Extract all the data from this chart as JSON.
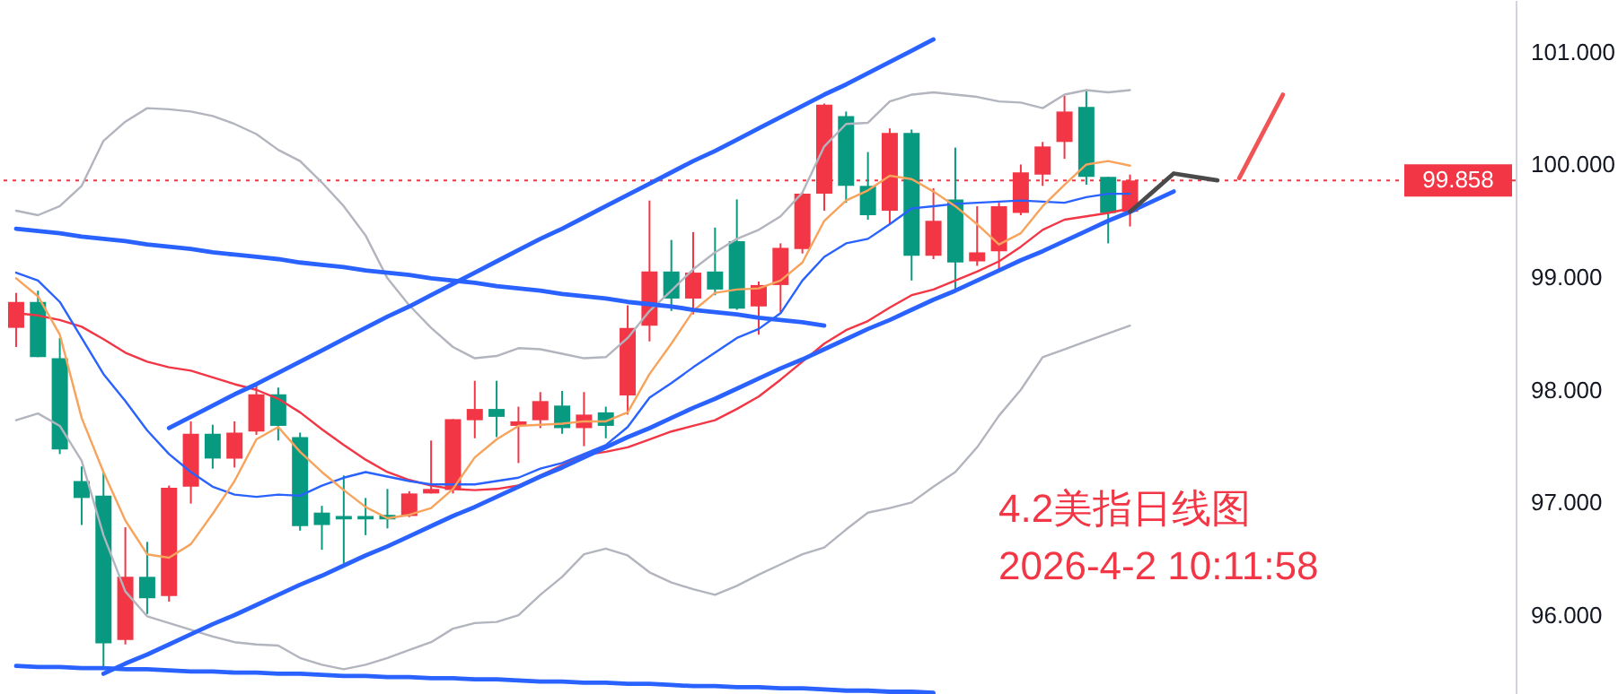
{
  "chart_data": {
    "type": "candlestick",
    "categories": [
      null,
      null,
      null,
      null,
      null,
      null,
      null,
      null,
      null,
      null,
      null,
      null,
      null,
      null,
      null,
      null,
      null,
      null,
      null,
      null,
      null,
      null,
      null,
      null,
      null,
      null,
      null,
      null,
      null,
      null,
      null,
      null,
      null,
      null,
      null,
      null,
      null,
      null,
      null,
      null,
      null,
      null,
      null,
      null,
      null,
      null,
      null,
      null,
      null,
      null,
      null,
      null,
      null,
      null,
      null,
      null,
      null,
      null,
      null,
      null,
      null,
      null,
      null,
      null,
      null,
      null,
      null,
      null,
      null
    ],
    "ohlc": [
      [
        98.55,
        98.86,
        98.38,
        98.78
      ],
      [
        98.78,
        98.88,
        98.29,
        98.29
      ],
      [
        98.28,
        98.46,
        97.43,
        97.47
      ],
      [
        97.19,
        97.32,
        96.8,
        97.04
      ],
      [
        97.06,
        97.27,
        95.52,
        95.75
      ],
      [
        95.78,
        96.78,
        95.74,
        96.34
      ],
      [
        96.34,
        96.65,
        96.01,
        96.15
      ],
      [
        96.17,
        97.15,
        96.12,
        97.13
      ],
      [
        97.14,
        97.72,
        96.99,
        97.61
      ],
      [
        97.61,
        97.69,
        97.3,
        97.39
      ],
      [
        97.39,
        97.72,
        97.31,
        97.62
      ],
      [
        97.63,
        98.04,
        97.6,
        97.96
      ],
      [
        97.96,
        98.02,
        97.55,
        97.68
      ],
      [
        97.58,
        97.62,
        96.75,
        96.79
      ],
      [
        96.91,
        96.97,
        96.58,
        96.8
      ],
      [
        96.88,
        97.24,
        96.46,
        96.85
      ],
      [
        96.88,
        97.04,
        96.71,
        96.85
      ],
      [
        96.89,
        97.12,
        96.77,
        96.85
      ],
      [
        96.88,
        97.1,
        96.87,
        97.08
      ],
      [
        97.08,
        97.55,
        97.08,
        97.12
      ],
      [
        97.11,
        97.74,
        97.08,
        97.74
      ],
      [
        97.73,
        98.08,
        97.57,
        97.83
      ],
      [
        97.83,
        98.08,
        97.58,
        97.76
      ],
      [
        97.68,
        97.85,
        97.35,
        97.72
      ],
      [
        97.73,
        97.98,
        97.66,
        97.9
      ],
      [
        97.86,
        97.99,
        97.61,
        97.66
      ],
      [
        97.66,
        97.98,
        97.5,
        97.78
      ],
      [
        97.8,
        97.85,
        97.57,
        97.68
      ],
      [
        97.95,
        98.75,
        97.78,
        98.55
      ],
      [
        98.57,
        99.68,
        98.43,
        99.05
      ],
      [
        99.05,
        99.33,
        98.7,
        98.81
      ],
      [
        98.81,
        99.4,
        98.67,
        99.04
      ],
      [
        99.05,
        99.44,
        98.84,
        98.89
      ],
      [
        99.32,
        99.69,
        98.71,
        98.72
      ],
      [
        98.74,
        98.96,
        98.49,
        98.93
      ],
      [
        98.93,
        99.3,
        98.69,
        99.26
      ],
      [
        99.25,
        99.75,
        99.21,
        99.74
      ],
      [
        99.74,
        100.54,
        99.59,
        100.53
      ],
      [
        100.43,
        100.47,
        99.66,
        99.81
      ],
      [
        99.81,
        100.11,
        99.51,
        99.55
      ],
      [
        99.59,
        100.32,
        99.47,
        100.28
      ],
      [
        100.28,
        100.31,
        98.97,
        99.19
      ],
      [
        99.19,
        99.79,
        99.16,
        99.5
      ],
      [
        99.69,
        100.15,
        98.88,
        99.13
      ],
      [
        99.14,
        99.63,
        99.1,
        99.22
      ],
      [
        99.23,
        99.66,
        99.06,
        99.63
      ],
      [
        99.57,
        100.0,
        99.55,
        99.93
      ],
      [
        99.91,
        100.2,
        99.81,
        100.16
      ],
      [
        100.2,
        100.61,
        100.05,
        100.47
      ],
      [
        100.51,
        100.66,
        99.82,
        99.89
      ],
      [
        99.89,
        99.89,
        99.3,
        99.57
      ],
      [
        99.58,
        99.91,
        99.45,
        99.858
      ],
      null,
      null,
      null,
      null,
      null,
      null,
      null,
      null,
      null,
      null,
      null,
      null,
      null,
      null,
      null,
      null,
      null
    ],
    "colors": [
      "#f23645",
      "#089981",
      "#089981",
      "#089981",
      "#089981",
      "#f23645",
      "#089981",
      "#f23645",
      "#f23645",
      "#089981",
      "#f23645",
      "#f23645",
      "#089981",
      "#089981",
      "#089981",
      "#089981",
      "#089981",
      "#089981",
      "#f23645",
      "#f23645",
      "#f23645",
      "#f23645",
      "#089981",
      "#f23645",
      "#f23645",
      "#089981",
      "#f23645",
      "#089981",
      "#f23645",
      "#f23645",
      "#089981",
      "#f23645",
      "#089981",
      "#089981",
      "#f23645",
      "#f23645",
      "#f23645",
      "#f23645",
      "#089981",
      "#089981",
      "#f23645",
      "#089981",
      "#f23645",
      "#089981",
      "#f23645",
      "#f23645",
      "#f23645",
      "#f23645",
      "#f23645",
      "#089981",
      "#089981",
      "#f23645",
      null,
      null,
      null,
      null,
      null,
      null,
      null,
      null,
      null,
      null,
      null,
      null,
      null,
      null,
      null,
      null,
      null
    ],
    "series": [
      {
        "type": "line",
        "color": "#b2b5be",
        "values": [
          99.59,
          99.55,
          99.63,
          99.81,
          100.21,
          100.38,
          100.5,
          100.49,
          100.47,
          100.43,
          100.36,
          100.27,
          100.13,
          100.03,
          99.84,
          99.63,
          99.37,
          98.99,
          98.75,
          98.55,
          98.38,
          98.28,
          98.3,
          98.37,
          98.36,
          98.32,
          98.28,
          98.29,
          98.46,
          98.7,
          98.88,
          99.07,
          99.22,
          99.34,
          99.42,
          99.54,
          99.75,
          100.16,
          100.36,
          100.37,
          100.56,
          100.62,
          100.64,
          100.62,
          100.6,
          100.56,
          100.55,
          100.5,
          100.62,
          100.66,
          100.64,
          100.66,
          null,
          null,
          null,
          null,
          null,
          null,
          null,
          null,
          null,
          null,
          null,
          null,
          null,
          null,
          null,
          null,
          null
        ]
      },
      {
        "type": "line",
        "color": "#b2b5be",
        "values": [
          97.73,
          97.79,
          97.68,
          97.37,
          96.71,
          96.21,
          95.99,
          95.93,
          95.87,
          95.81,
          95.76,
          95.74,
          95.73,
          95.62,
          95.56,
          95.52,
          95.56,
          95.62,
          95.69,
          95.76,
          95.88,
          95.93,
          95.94,
          96.0,
          96.18,
          96.34,
          96.54,
          96.59,
          96.53,
          96.38,
          96.29,
          96.23,
          96.18,
          96.26,
          96.36,
          96.45,
          96.54,
          96.6,
          96.76,
          96.91,
          96.95,
          97.0,
          97.14,
          97.27,
          97.49,
          97.77,
          98.0,
          98.29,
          98.36,
          98.43,
          98.5,
          98.57,
          null,
          null,
          null,
          null,
          null,
          null,
          null,
          null,
          null,
          null,
          null,
          null,
          null,
          null,
          null,
          null,
          null
        ]
      },
      {
        "type": "line",
        "color": "#f23645",
        "values": [
          98.68,
          98.66,
          98.62,
          98.56,
          98.45,
          98.33,
          98.25,
          98.2,
          98.17,
          98.11,
          98.05,
          98.0,
          97.92,
          97.8,
          97.65,
          97.51,
          97.38,
          97.27,
          97.2,
          97.15,
          97.12,
          97.11,
          97.12,
          97.15,
          97.24,
          97.33,
          97.42,
          97.45,
          97.49,
          97.56,
          97.63,
          97.68,
          97.73,
          97.83,
          97.94,
          98.09,
          98.25,
          98.41,
          98.53,
          98.61,
          98.73,
          98.84,
          98.89,
          98.97,
          99.05,
          99.14,
          99.27,
          99.42,
          99.51,
          99.54,
          99.57,
          99.61,
          null,
          null,
          null,
          null,
          null,
          null,
          null,
          null,
          null,
          null,
          null,
          null,
          null,
          null,
          null,
          null,
          null
        ]
      },
      {
        "type": "line",
        "color": "#2962ff",
        "values": [
          99.04,
          98.97,
          98.78,
          98.46,
          98.14,
          97.9,
          97.64,
          97.43,
          97.27,
          97.14,
          97.07,
          97.05,
          97.07,
          97.06,
          97.15,
          97.22,
          97.27,
          97.23,
          97.19,
          97.16,
          97.16,
          97.16,
          97.19,
          97.22,
          97.3,
          97.35,
          97.43,
          97.51,
          97.67,
          97.93,
          98.06,
          98.2,
          98.33,
          98.46,
          98.54,
          98.68,
          98.97,
          99.18,
          99.3,
          99.34,
          99.47,
          99.61,
          99.63,
          99.65,
          99.66,
          99.67,
          99.68,
          99.67,
          99.66,
          99.71,
          99.74,
          99.74,
          null,
          null,
          null,
          null,
          null,
          null,
          null,
          null,
          null,
          null,
          null,
          null,
          null,
          null,
          null,
          null,
          null
        ]
      },
      {
        "type": "line",
        "color": "#f7a35c",
        "values": [
          98.99,
          98.83,
          98.49,
          97.75,
          97.27,
          96.84,
          96.54,
          96.51,
          96.63,
          96.9,
          97.19,
          97.56,
          97.67,
          97.45,
          97.27,
          97.11,
          96.96,
          96.86,
          96.89,
          96.95,
          97.12,
          97.4,
          97.56,
          97.68,
          97.69,
          97.7,
          97.72,
          97.72,
          97.8,
          98.14,
          98.41,
          98.7,
          98.86,
          98.89,
          98.9,
          98.97,
          99.13,
          99.5,
          99.68,
          99.77,
          99.9,
          99.87,
          99.76,
          99.63,
          99.47,
          99.29,
          99.39,
          99.63,
          99.82,
          100.0,
          100.03,
          99.99,
          null,
          null,
          null,
          null,
          null,
          null,
          null,
          null,
          null,
          null,
          null,
          null,
          null,
          null,
          null,
          null,
          null
        ]
      },
      {
        "type": "line",
        "color": "#2962ff",
        "values": [
          99.43,
          99.41,
          99.39,
          99.36,
          99.34,
          99.32,
          99.29,
          99.27,
          99.25,
          99.22,
          99.2,
          99.18,
          99.16,
          99.13,
          99.11,
          99.09,
          99.06,
          99.04,
          99.02,
          98.99,
          98.97,
          98.95,
          98.92,
          98.9,
          98.88,
          98.85,
          98.83,
          98.81,
          98.78,
          98.76,
          98.74,
          98.71,
          98.69,
          98.67,
          98.64,
          98.62,
          98.6,
          98.57,
          null,
          null,
          null,
          null,
          null,
          null,
          null,
          null,
          null,
          null,
          null,
          null,
          null,
          null,
          null,
          null,
          null,
          null,
          null,
          null,
          null,
          null,
          null,
          null,
          null,
          null,
          null,
          null,
          null,
          null,
          null
        ]
      },
      {
        "type": "line",
        "color": "#2962ff",
        "values": [
          null,
          null,
          null,
          null,
          null,
          null,
          null,
          97.66,
          97.76,
          97.86,
          97.96,
          98.05,
          98.15,
          98.25,
          98.35,
          98.45,
          98.55,
          98.65,
          98.74,
          98.84,
          98.94,
          99.04,
          99.14,
          99.24,
          99.34,
          99.43,
          99.53,
          99.63,
          99.73,
          99.83,
          99.93,
          100.03,
          100.12,
          100.22,
          100.32,
          100.42,
          100.52,
          100.62,
          100.71,
          100.81,
          100.91,
          101.01,
          101.11,
          null,
          null,
          null,
          null,
          null,
          null,
          null,
          null,
          null,
          null,
          null,
          null,
          null,
          null,
          null,
          null,
          null,
          null,
          null,
          null,
          null,
          null,
          null,
          null,
          null,
          null
        ]
      },
      {
        "type": "line",
        "color": "#2962ff",
        "values": [
          null,
          null,
          null,
          null,
          95.48,
          95.57,
          95.65,
          95.74,
          95.83,
          95.92,
          96.0,
          96.09,
          96.18,
          96.27,
          96.35,
          96.44,
          96.53,
          96.61,
          96.7,
          96.79,
          96.88,
          96.96,
          97.05,
          97.14,
          97.23,
          97.31,
          97.4,
          97.49,
          97.58,
          97.66,
          97.75,
          97.84,
          97.92,
          98.01,
          98.1,
          98.19,
          98.27,
          98.36,
          98.45,
          98.54,
          98.62,
          98.71,
          98.8,
          98.88,
          98.97,
          99.06,
          99.15,
          99.23,
          99.32,
          99.41,
          99.5,
          99.58,
          99.67,
          99.76,
          null,
          null,
          null,
          null,
          null,
          null,
          null,
          null,
          null,
          null,
          null,
          null,
          null,
          null,
          null
        ]
      },
      {
        "type": "line",
        "color": "#2962ff",
        "values": [
          95.55,
          95.54,
          95.54,
          95.53,
          95.53,
          95.52,
          95.52,
          95.51,
          95.5,
          95.5,
          95.49,
          95.49,
          95.48,
          95.48,
          95.47,
          95.46,
          95.46,
          95.45,
          95.45,
          95.44,
          95.44,
          95.43,
          95.43,
          95.42,
          95.41,
          95.41,
          95.4,
          95.4,
          95.39,
          95.39,
          95.38,
          95.37,
          95.37,
          95.36,
          95.36,
          95.35,
          95.35,
          95.34,
          95.33,
          95.33,
          95.32,
          95.32,
          95.31,
          null,
          null,
          null,
          null,
          null,
          null,
          null,
          null,
          null,
          null,
          null,
          null,
          null,
          null,
          null,
          null,
          null,
          null,
          null,
          null,
          null,
          null,
          null,
          null,
          null,
          null
        ]
      },
      {
        "type": "line",
        "color": "#4a4a4a",
        "values": [
          null,
          null,
          null,
          null,
          null,
          null,
          null,
          null,
          null,
          null,
          null,
          null,
          null,
          null,
          null,
          null,
          null,
          null,
          null,
          null,
          null,
          null,
          null,
          null,
          null,
          null,
          null,
          null,
          null,
          null,
          null,
          null,
          null,
          null,
          null,
          null,
          null,
          null,
          null,
          null,
          null,
          null,
          null,
          null,
          null,
          null,
          null,
          null,
          null,
          null,
          null,
          99.58,
          99.75,
          99.92,
          99.89,
          99.86,
          null,
          null,
          null,
          null,
          null,
          null,
          null,
          null,
          null,
          null,
          null,
          null,
          null
        ]
      },
      {
        "type": "line",
        "color": "#f05454",
        "values": [
          null,
          null,
          null,
          null,
          null,
          null,
          null,
          null,
          null,
          null,
          null,
          null,
          null,
          null,
          null,
          null,
          null,
          null,
          null,
          null,
          null,
          null,
          null,
          null,
          null,
          null,
          null,
          null,
          null,
          null,
          null,
          null,
          null,
          null,
          null,
          null,
          null,
          null,
          null,
          null,
          null,
          null,
          null,
          null,
          null,
          null,
          null,
          null,
          null,
          null,
          null,
          null,
          null,
          null,
          null,
          null,
          99.88,
          100.25,
          100.62,
          null,
          null,
          null,
          null,
          null,
          null,
          null,
          null,
          null,
          null
        ]
      }
    ],
    "ylim": [
      95.3,
      101.46
    ],
    "yticks": [
      {
        "value": 96,
        "label": "96.000"
      },
      {
        "value": 97,
        "label": "97.000"
      },
      {
        "value": 98,
        "label": "98.000"
      },
      {
        "value": 99,
        "label": "99.000"
      },
      {
        "value": 100,
        "label": "100.000"
      },
      {
        "value": 101,
        "label": "101.000"
      }
    ],
    "ref_lines": [
      {
        "axis": "y",
        "value": 99.858,
        "label": "99.858",
        "color": "#f23645",
        "line_style": "dotted"
      }
    ],
    "annotations": [
      "4.2美指日线图",
      "2026-4-2 10:11:58"
    ],
    "grid": false,
    "tick_labels": "y"
  }
}
